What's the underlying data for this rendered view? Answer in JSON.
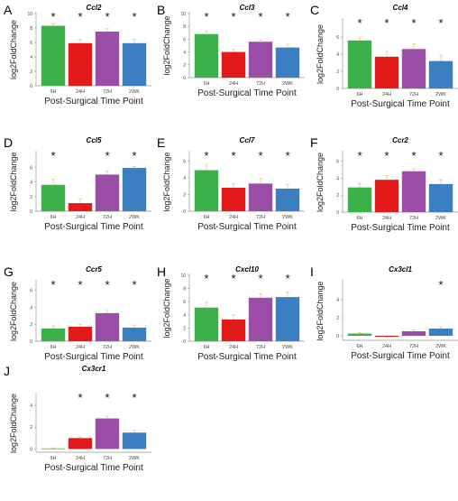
{
  "xlabel": "Post-Surgical Time Point",
  "ylabel": "log2FoldChange",
  "categories": [
    "6H",
    "24H",
    "72H",
    "2WK"
  ],
  "colors": [
    "#3cb14a",
    "#e31a1c",
    "#9b4ea6",
    "#3b7fc0"
  ],
  "chart_data": [
    {
      "type": "bar",
      "panel_letter": "A",
      "title": "Ccl2",
      "categories": [
        "6H",
        "24H",
        "72H",
        "2WK"
      ],
      "values": [
        8.3,
        5.9,
        7.5,
        5.9
      ],
      "errors": [
        0.3,
        0.5,
        0.4,
        0.5
      ],
      "significant": [
        true,
        true,
        true,
        true
      ],
      "ylim": [
        0,
        10
      ],
      "yticks": [
        0,
        2,
        4,
        6,
        8,
        10
      ]
    },
    {
      "type": "bar",
      "panel_letter": "B",
      "title": "Ccl3",
      "categories": [
        "6H",
        "24H",
        "72H",
        "2WK"
      ],
      "values": [
        6.8,
        4.0,
        5.6,
        4.7
      ],
      "errors": [
        0.5,
        0.4,
        0.3,
        0.5
      ],
      "significant": [
        true,
        true,
        true,
        true
      ],
      "ylim": [
        0,
        10
      ],
      "yticks": [
        0,
        2,
        4,
        6,
        8,
        10
      ]
    },
    {
      "type": "bar",
      "panel_letter": "C",
      "title": "Ccl4",
      "categories": [
        "6H",
        "24H",
        "72H",
        "2WK"
      ],
      "values": [
        5.6,
        3.7,
        4.6,
        3.2
      ],
      "errors": [
        0.3,
        0.6,
        0.6,
        0.7
      ],
      "significant": [
        true,
        true,
        true,
        true
      ],
      "ylim": [
        0,
        8
      ],
      "yticks": [
        0,
        2,
        4,
        6
      ]
    },
    {
      "type": "bar",
      "panel_letter": "D",
      "title": "Ccl5",
      "categories": [
        "6H",
        "24H",
        "72H",
        "2WK"
      ],
      "values": [
        3.6,
        1.1,
        5.0,
        5.9
      ],
      "errors": [
        0.8,
        0.6,
        0.5,
        0.2
      ],
      "significant": [
        true,
        false,
        true,
        true
      ],
      "ylim": [
        0,
        8
      ],
      "yticks": [
        0,
        2,
        4,
        6
      ]
    },
    {
      "type": "bar",
      "panel_letter": "E",
      "title": "Ccl7",
      "categories": [
        "6H",
        "24H",
        "72H",
        "2WK"
      ],
      "values": [
        4.9,
        2.8,
        3.3,
        2.7
      ],
      "errors": [
        0.7,
        0.5,
        0.6,
        0.5
      ],
      "significant": [
        true,
        true,
        true,
        true
      ],
      "ylim": [
        0,
        7
      ],
      "yticks": [
        0,
        2,
        4,
        6
      ]
    },
    {
      "type": "bar",
      "panel_letter": "F",
      "title": "Ccr2",
      "categories": [
        "6H",
        "24H",
        "72H",
        "2WK"
      ],
      "values": [
        2.9,
        3.8,
        4.8,
        3.3
      ],
      "errors": [
        0.5,
        0.5,
        0.3,
        0.5
      ],
      "significant": [
        true,
        true,
        true,
        true
      ],
      "ylim": [
        0,
        7
      ],
      "yticks": [
        0,
        2,
        4,
        6
      ]
    },
    {
      "type": "bar",
      "panel_letter": "G",
      "title": "Ccr5",
      "categories": [
        "6H",
        "24H",
        "72H",
        "2WK"
      ],
      "values": [
        1.5,
        1.7,
        3.3,
        1.6
      ],
      "errors": [
        0.3,
        0.3,
        0.3,
        0.3
      ],
      "significant": [
        true,
        true,
        true,
        true
      ],
      "ylim": [
        0,
        7
      ],
      "yticks": [
        0,
        2,
        4,
        6
      ]
    },
    {
      "type": "bar",
      "panel_letter": "H",
      "title": "Cxcl10",
      "categories": [
        "6H",
        "24H",
        "72H",
        "2WK"
      ],
      "values": [
        5.1,
        3.3,
        6.6,
        6.7
      ],
      "errors": [
        0.8,
        0.7,
        0.6,
        0.8
      ],
      "significant": [
        true,
        true,
        true,
        true
      ],
      "ylim": [
        0,
        10
      ],
      "yticks": [
        0,
        2,
        4,
        6,
        8,
        10
      ]
    },
    {
      "type": "bar",
      "panel_letter": "I",
      "title": "Cx3cl1",
      "categories": [
        "6H",
        "24H",
        "72H",
        "2WK"
      ],
      "values": [
        0.25,
        -0.1,
        0.5,
        0.8
      ],
      "errors": [
        0.1,
        0.1,
        0.15,
        0.15
      ],
      "significant": [
        false,
        false,
        false,
        true
      ],
      "ylim": [
        -0.5,
        6
      ],
      "yticks": [
        0,
        2,
        4
      ]
    },
    {
      "type": "bar",
      "panel_letter": "J",
      "title": "Cx3cr1",
      "categories": [
        "6H",
        "24H",
        "72H",
        "2WK"
      ],
      "values": [
        0.05,
        1.0,
        2.8,
        1.5
      ],
      "errors": [
        0.05,
        0.1,
        0.2,
        0.2
      ],
      "significant": [
        false,
        true,
        true,
        true
      ],
      "ylim": [
        -0.3,
        5
      ],
      "yticks": [
        0,
        2,
        4
      ]
    }
  ]
}
